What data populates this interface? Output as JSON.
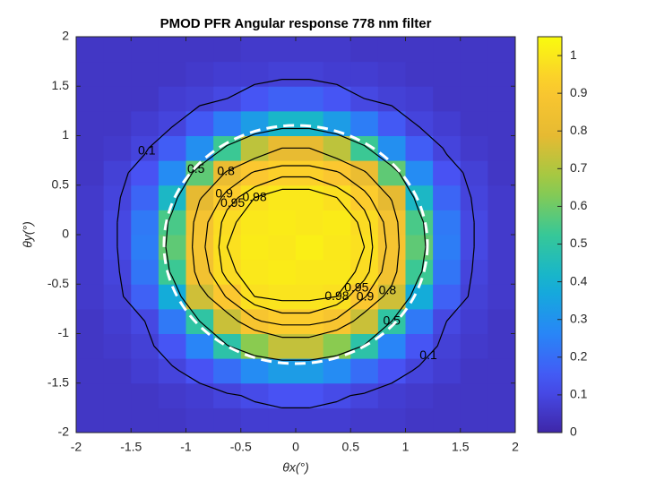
{
  "chart_data": {
    "type": "heatmap",
    "title": "PMOD PFR Angular response 778 nm filter",
    "x_label": "θx(°)",
    "y_label": "θy(°)",
    "colormap": "parula",
    "xlim": [
      -2,
      2
    ],
    "ylim": [
      -2,
      2
    ],
    "clim": [
      0,
      1.05
    ],
    "xticks": [
      -2,
      -1.5,
      -1,
      -0.5,
      0,
      0.5,
      1,
      1.5,
      2
    ],
    "yticks": [
      -2,
      -1.5,
      -1,
      -0.5,
      0,
      0.5,
      1,
      1.5,
      2
    ],
    "cticks": [
      0,
      0.1,
      0.2,
      0.3,
      0.4,
      0.5,
      0.6,
      0.7,
      0.8,
      0.9,
      1
    ],
    "contour_levels": [
      0.1,
      0.5,
      0.8,
      0.9,
      0.95,
      0.98
    ],
    "x": [
      -1.875,
      -1.625,
      -1.375,
      -1.125,
      -0.875,
      -0.625,
      -0.375,
      -0.125,
      0.125,
      0.375,
      0.625,
      0.875,
      1.125,
      1.375,
      1.625,
      1.875
    ],
    "y": [
      -1.875,
      -1.625,
      -1.375,
      -1.125,
      -0.875,
      -0.625,
      -0.375,
      -0.125,
      0.125,
      0.375,
      0.625,
      0.875,
      1.125,
      1.375,
      1.625,
      1.875
    ],
    "z": [
      [
        0.05,
        0.05,
        0.05,
        0.05,
        0.06,
        0.06,
        0.07,
        0.07,
        0.07,
        0.07,
        0.06,
        0.06,
        0.05,
        0.05,
        0.05,
        0.05
      ],
      [
        0.05,
        0.05,
        0.05,
        0.06,
        0.07,
        0.09,
        0.11,
        0.13,
        0.13,
        0.11,
        0.09,
        0.07,
        0.06,
        0.05,
        0.05,
        0.05
      ],
      [
        0.05,
        0.05,
        0.07,
        0.09,
        0.13,
        0.2,
        0.28,
        0.33,
        0.33,
        0.28,
        0.2,
        0.13,
        0.09,
        0.07,
        0.05,
        0.05
      ],
      [
        0.05,
        0.06,
        0.08,
        0.14,
        0.26,
        0.49,
        0.64,
        0.73,
        0.73,
        0.64,
        0.49,
        0.26,
        0.14,
        0.08,
        0.06,
        0.05
      ],
      [
        0.05,
        0.07,
        0.1,
        0.23,
        0.5,
        0.74,
        0.89,
        0.93,
        0.93,
        0.89,
        0.74,
        0.5,
        0.23,
        0.1,
        0.07,
        0.05
      ],
      [
        0.06,
        0.08,
        0.17,
        0.38,
        0.75,
        0.91,
        0.98,
        0.99,
        0.99,
        0.98,
        0.91,
        0.75,
        0.38,
        0.17,
        0.08,
        0.06
      ],
      [
        0.06,
        0.09,
        0.22,
        0.53,
        0.86,
        0.97,
        1.0,
        1.01,
        1.0,
        1.0,
        0.97,
        0.86,
        0.53,
        0.22,
        0.09,
        0.06
      ],
      [
        0.06,
        0.1,
        0.24,
        0.58,
        0.88,
        0.98,
        1.01,
        1.0,
        1.02,
        1.0,
        0.98,
        0.88,
        0.58,
        0.24,
        0.1,
        0.06
      ],
      [
        0.06,
        0.1,
        0.23,
        0.55,
        0.87,
        0.97,
        1.0,
        1.01,
        1.0,
        1.01,
        0.97,
        0.87,
        0.55,
        0.23,
        0.1,
        0.06
      ],
      [
        0.06,
        0.09,
        0.18,
        0.43,
        0.79,
        0.93,
        0.98,
        1.0,
        1.0,
        0.98,
        0.93,
        0.79,
        0.43,
        0.18,
        0.09,
        0.06
      ],
      [
        0.05,
        0.08,
        0.13,
        0.28,
        0.58,
        0.82,
        0.91,
        0.94,
        0.94,
        0.91,
        0.82,
        0.58,
        0.28,
        0.13,
        0.08,
        0.05
      ],
      [
        0.05,
        0.06,
        0.09,
        0.16,
        0.29,
        0.53,
        0.72,
        0.8,
        0.8,
        0.72,
        0.53,
        0.29,
        0.16,
        0.09,
        0.06,
        0.05
      ],
      [
        0.05,
        0.05,
        0.07,
        0.09,
        0.15,
        0.24,
        0.33,
        0.42,
        0.42,
        0.33,
        0.24,
        0.15,
        0.09,
        0.07,
        0.05,
        0.05
      ],
      [
        0.05,
        0.05,
        0.05,
        0.07,
        0.08,
        0.1,
        0.14,
        0.17,
        0.17,
        0.14,
        0.1,
        0.08,
        0.07,
        0.05,
        0.05,
        0.05
      ],
      [
        0.05,
        0.05,
        0.05,
        0.05,
        0.06,
        0.07,
        0.07,
        0.08,
        0.08,
        0.07,
        0.07,
        0.06,
        0.05,
        0.05,
        0.05,
        0.05
      ],
      [
        0.05,
        0.05,
        0.05,
        0.05,
        0.05,
        0.05,
        0.06,
        0.06,
        0.06,
        0.06,
        0.05,
        0.05,
        0.05,
        0.05,
        0.05,
        0.05
      ]
    ]
  }
}
